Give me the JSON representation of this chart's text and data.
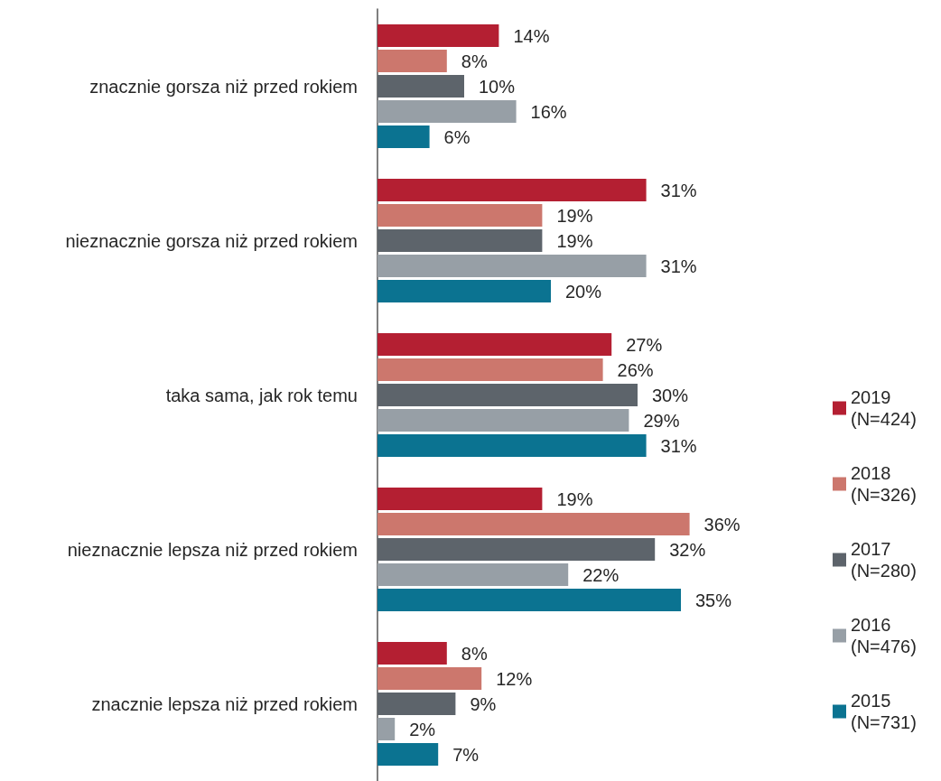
{
  "chart_data": {
    "type": "bar",
    "orientation": "horizontal",
    "legend": "right",
    "categories": [
      "znacznie gorsza niż przed rokiem",
      "nieznacznie gorsza niż przed rokiem",
      "taka sama, jak rok temu",
      "nieznacznie lepsza niż przed rokiem",
      "znacznie lepsza niż przed rokiem"
    ],
    "series": [
      {
        "name": "2019 (N=424)",
        "color": "#b41f32",
        "values": [
          14,
          31,
          27,
          19,
          8
        ],
        "value_labels": [
          "14%",
          "31%",
          "27%",
          "19%",
          "8%"
        ]
      },
      {
        "name": "2018 (N=326)",
        "color": "#cc776d",
        "values": [
          8,
          19,
          26,
          36,
          12
        ],
        "value_labels": [
          "8%",
          "19%",
          "26%",
          "36%",
          "12%"
        ]
      },
      {
        "name": "2017 (N=280)",
        "color": "#5d646b",
        "values": [
          10,
          19,
          30,
          32,
          9
        ],
        "value_labels": [
          "10%",
          "19%",
          "30%",
          "32%",
          "9%"
        ]
      },
      {
        "name": "2016 (N=476)",
        "color": "#979fa6",
        "values": [
          16,
          31,
          29,
          22,
          2
        ],
        "value_labels": [
          "16%",
          "31%",
          "29%",
          "22%",
          "2%"
        ]
      },
      {
        "name": "2015 (N=731)",
        "color": "#0b7391",
        "values": [
          6,
          20,
          31,
          35,
          7
        ],
        "value_labels": [
          "6%",
          "20%",
          "31%",
          "35%",
          "7%"
        ]
      }
    ]
  }
}
